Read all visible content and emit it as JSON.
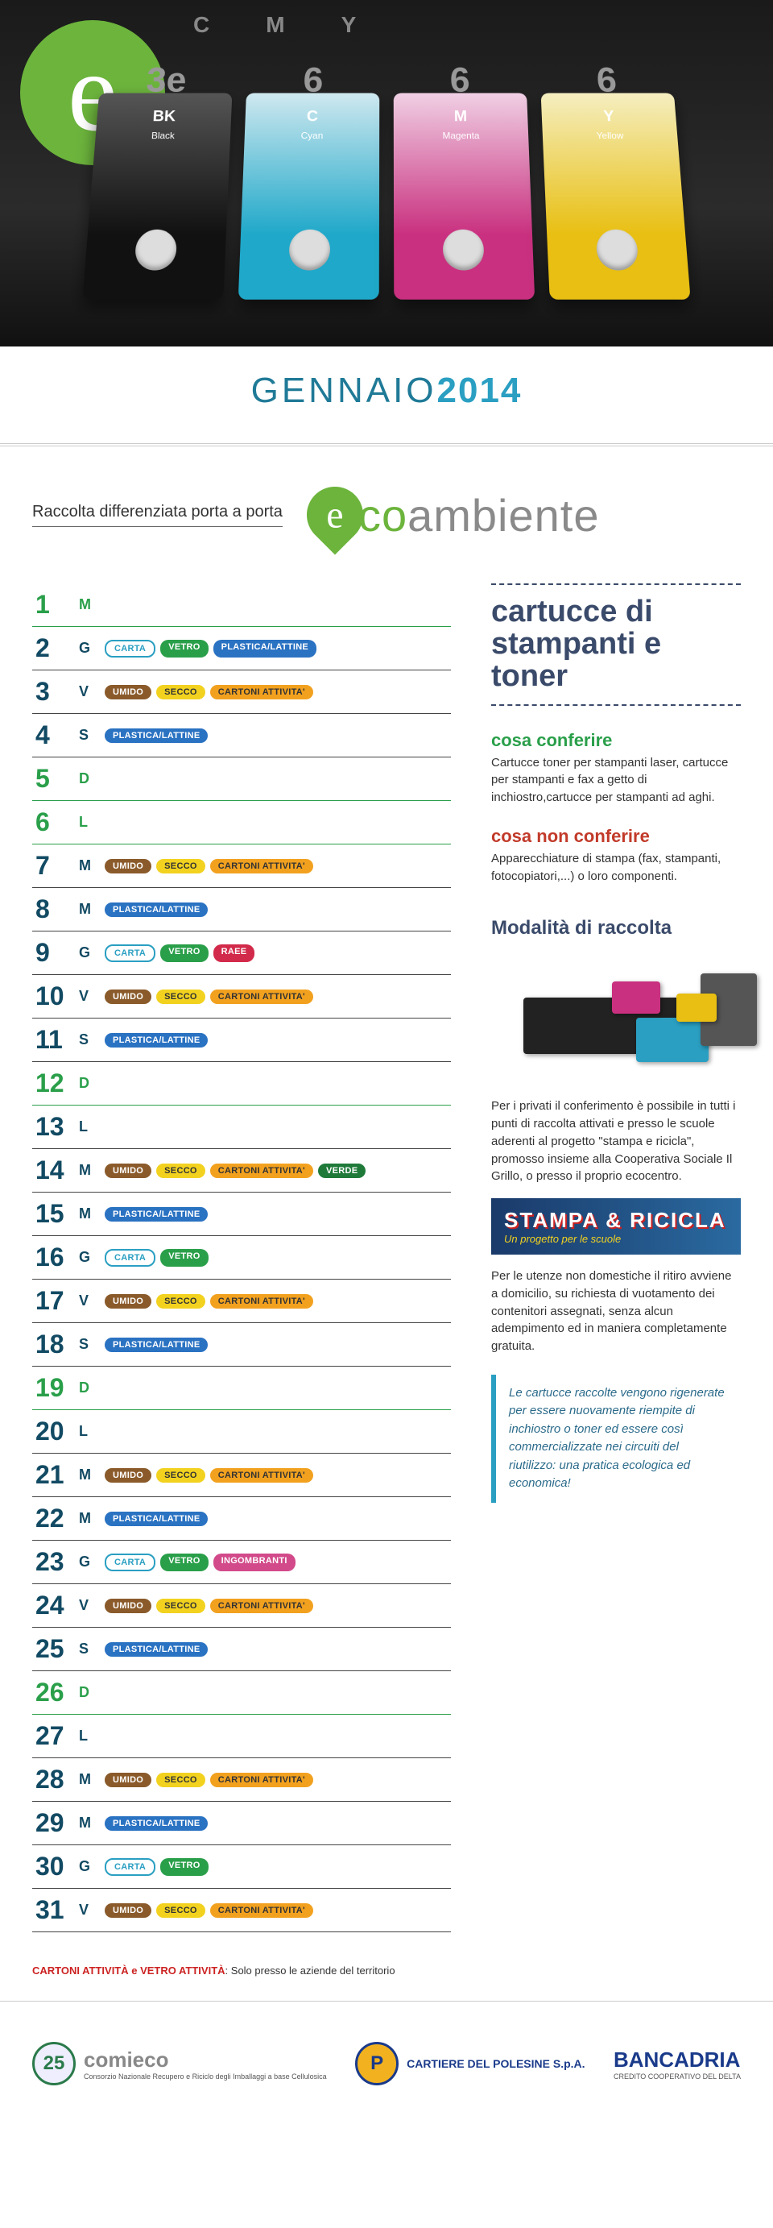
{
  "hero": {
    "badge_letter": "e",
    "cmyk": [
      "C",
      "M",
      "Y"
    ],
    "carts": [
      {
        "code": "BK",
        "name": "Black",
        "num": "3e",
        "cls": "bk"
      },
      {
        "code": "C",
        "name": "Cyan",
        "num": "6",
        "cls": "c"
      },
      {
        "code": "M",
        "name": "Magenta",
        "num": "6",
        "cls": "m"
      },
      {
        "code": "Y",
        "name": "Yellow",
        "num": "6",
        "cls": "y"
      }
    ]
  },
  "month": {
    "name": "GENNAIO",
    "year": "2014"
  },
  "subhead": "Raccolta differenziata porta a porta",
  "brand": {
    "e": "e",
    "co": "co",
    "rest": "ambiente"
  },
  "tag_styles": {
    "CARTA": "carta",
    "VETRO": "vetro",
    "PLASTICA/LATTINE": "plastica",
    "UMIDO": "umido",
    "SECCO": "secco",
    "CARTONI ATTIVITA'": "cartoni",
    "RAEE": "raee",
    "VERDE": "verde",
    "INGOMBRANTI": "ingombranti"
  },
  "days": [
    {
      "n": 1,
      "d": "M",
      "h": true,
      "tags": []
    },
    {
      "n": 2,
      "d": "G",
      "tags": [
        "CARTA",
        "VETRO",
        "PLASTICA/LATTINE"
      ]
    },
    {
      "n": 3,
      "d": "V",
      "tags": [
        "UMIDO",
        "SECCO",
        "CARTONI ATTIVITA'"
      ]
    },
    {
      "n": 4,
      "d": "S",
      "tags": [
        "PLASTICA/LATTINE"
      ]
    },
    {
      "n": 5,
      "d": "D",
      "h": true,
      "tags": []
    },
    {
      "n": 6,
      "d": "L",
      "h": true,
      "tags": []
    },
    {
      "n": 7,
      "d": "M",
      "tags": [
        "UMIDO",
        "SECCO",
        "CARTONI ATTIVITA'"
      ]
    },
    {
      "n": 8,
      "d": "M",
      "tags": [
        "PLASTICA/LATTINE"
      ]
    },
    {
      "n": 9,
      "d": "G",
      "tags": [
        "CARTA",
        "VETRO",
        "RAEE"
      ]
    },
    {
      "n": 10,
      "d": "V",
      "tags": [
        "UMIDO",
        "SECCO",
        "CARTONI ATTIVITA'"
      ]
    },
    {
      "n": 11,
      "d": "S",
      "tags": [
        "PLASTICA/LATTINE"
      ]
    },
    {
      "n": 12,
      "d": "D",
      "h": true,
      "tags": []
    },
    {
      "n": 13,
      "d": "L",
      "tags": []
    },
    {
      "n": 14,
      "d": "M",
      "tags": [
        "UMIDO",
        "SECCO",
        "CARTONI ATTIVITA'",
        "VERDE"
      ]
    },
    {
      "n": 15,
      "d": "M",
      "tags": [
        "PLASTICA/LATTINE"
      ]
    },
    {
      "n": 16,
      "d": "G",
      "tags": [
        "CARTA",
        "VETRO"
      ]
    },
    {
      "n": 17,
      "d": "V",
      "tags": [
        "UMIDO",
        "SECCO",
        "CARTONI ATTIVITA'"
      ]
    },
    {
      "n": 18,
      "d": "S",
      "tags": [
        "PLASTICA/LATTINE"
      ]
    },
    {
      "n": 19,
      "d": "D",
      "h": true,
      "tags": []
    },
    {
      "n": 20,
      "d": "L",
      "tags": []
    },
    {
      "n": 21,
      "d": "M",
      "tags": [
        "UMIDO",
        "SECCO",
        "CARTONI ATTIVITA'"
      ]
    },
    {
      "n": 22,
      "d": "M",
      "tags": [
        "PLASTICA/LATTINE"
      ]
    },
    {
      "n": 23,
      "d": "G",
      "tags": [
        "CARTA",
        "VETRO",
        "INGOMBRANTI"
      ]
    },
    {
      "n": 24,
      "d": "V",
      "tags": [
        "UMIDO",
        "SECCO",
        "CARTONI ATTIVITA'"
      ]
    },
    {
      "n": 25,
      "d": "S",
      "tags": [
        "PLASTICA/LATTINE"
      ]
    },
    {
      "n": 26,
      "d": "D",
      "h": true,
      "tags": []
    },
    {
      "n": 27,
      "d": "L",
      "tags": []
    },
    {
      "n": 28,
      "d": "M",
      "tags": [
        "UMIDO",
        "SECCO",
        "CARTONI ATTIVITA'"
      ]
    },
    {
      "n": 29,
      "d": "M",
      "tags": [
        "PLASTICA/LATTINE"
      ]
    },
    {
      "n": 30,
      "d": "G",
      "tags": [
        "CARTA",
        "VETRO"
      ]
    },
    {
      "n": 31,
      "d": "V",
      "tags": [
        "UMIDO",
        "SECCO",
        "CARTONI ATTIVITA'"
      ]
    }
  ],
  "footnote": {
    "bold": "CARTONI ATTIVITÀ e VETRO ATTIVITÀ",
    "rest": ": Solo presso le aziende del territorio"
  },
  "side": {
    "title": "cartucce di stampanti e toner",
    "ok_h": "cosa conferire",
    "ok_p": "Cartucce toner per stampanti laser, cartucce per stampanti e fax a getto di inchiostro,cartucce per stampanti ad aghi.",
    "no_h": "cosa non conferire",
    "no_p": "Apparecchiature di stampa (fax, stampanti, fotocopiatori,...) o loro componenti.",
    "mod_h": "Modalità di raccolta",
    "p1": "Per i privati il conferimento è possibile in tutti i punti di raccolta attivati e presso le scuole aderenti al progetto \"stampa e ricicla\", promosso insieme alla Cooperativa Sociale Il Grillo, o presso il proprio ecocentro.",
    "banner_t": "STAMPA & RICICLA",
    "banner_s": "Un progetto per le scuole",
    "p2": "Per le utenze non domestiche il ritiro avviene a domicilio, su richiesta di vuotamento dei contenitori assegnati, senza alcun adempimento ed in maniera completamente gratuita.",
    "quote": "Le cartucce raccolte vengono rigenerate per essere nuovamente riempite di inchiostro o toner ed essere così commercializzate nei circuiti del riutilizzo: una pratica ecologica ed economica!"
  },
  "sponsors": [
    {
      "name": "comieco",
      "desc": "Consorzio Nazionale Recupero e Riciclo degli Imballaggi a base Cellulosica",
      "icon_bg": "#eef",
      "icon_fg": "#2a7a4a",
      "icon_txt": "25",
      "name_color": "#888"
    },
    {
      "name": "CARTIERE DEL POLESINE S.p.A.",
      "desc": "",
      "icon_bg": "#f2b21f",
      "icon_fg": "#1a3a8a",
      "icon_txt": "P",
      "name_color": "#1a3a8a",
      "small": true
    },
    {
      "name": "BANCADRIA",
      "desc": "CREDITO COOPERATIVO DEL DELTA",
      "icon_bg": "transparent",
      "icon_fg": "#1a3a8a",
      "icon_txt": "",
      "name_color": "#1a3a8a"
    }
  ]
}
